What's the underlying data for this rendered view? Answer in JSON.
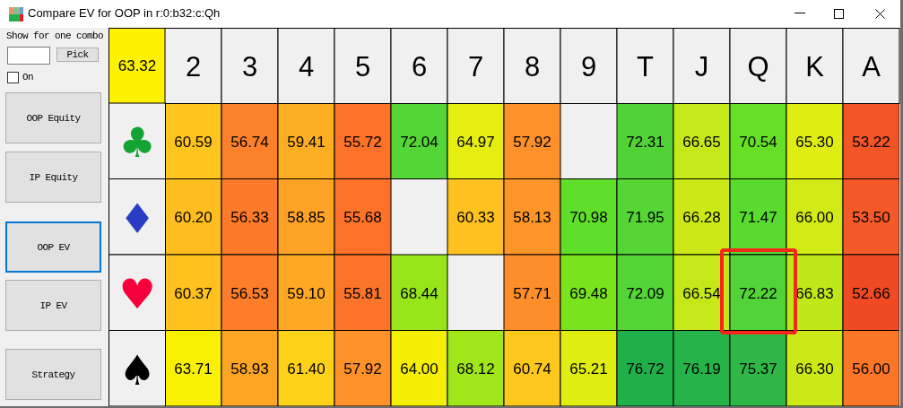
{
  "chart_data": {
    "type": "heatmap",
    "title": "Compare EV for OOP in r:0:b32:c:Qh",
    "categories": [
      "2",
      "3",
      "4",
      "5",
      "6",
      "7",
      "8",
      "9",
      "T",
      "J",
      "Q",
      "K",
      "A"
    ],
    "y_categories": [
      "♣",
      "♦",
      "♥",
      "♠"
    ],
    "cells": [
      [
        60.59,
        56.74,
        59.41,
        55.72,
        72.04,
        64.97,
        57.92,
        null,
        72.31,
        66.65,
        70.54,
        65.3,
        53.22
      ],
      [
        60.2,
        56.33,
        58.85,
        55.68,
        null,
        60.33,
        58.13,
        70.98,
        71.95,
        66.28,
        71.47,
        66.0,
        53.5
      ],
      [
        60.37,
        56.53,
        59.1,
        55.81,
        68.44,
        null,
        57.71,
        69.48,
        72.09,
        66.54,
        72.22,
        66.83,
        52.66
      ],
      [
        63.71,
        58.93,
        61.4,
        57.92,
        64.0,
        68.12,
        60.74,
        65.21,
        76.72,
        76.19,
        75.37,
        66.3,
        56.0
      ]
    ],
    "cell_labels": [
      [
        "60.59",
        "56.74",
        "59.41",
        "55.72",
        "72.04",
        "64.97",
        "57.92",
        null,
        "72.31",
        "66.65",
        "70.54",
        "65.30",
        "53.22"
      ],
      [
        "60.20",
        "56.33",
        "58.85",
        "55.68",
        null,
        "60.33",
        "58.13",
        "70.98",
        "71.95",
        "66.28",
        "71.47",
        "66.00",
        "53.50"
      ],
      [
        "60.37",
        "56.53",
        "59.10",
        "55.81",
        "68.44",
        null,
        "57.71",
        "69.48",
        "72.09",
        "66.54",
        "72.22",
        "66.83",
        "52.66"
      ],
      [
        "63.71",
        "58.93",
        "61.40",
        "57.92",
        "64.00",
        "68.12",
        "60.74",
        "65.21",
        "76.72",
        "76.19",
        "75.37",
        "66.30",
        "56.00"
      ]
    ],
    "data_labels": true,
    "annotations": [
      "63.32",
      "Show for one combo",
      "Pick",
      "On",
      "OOP Equity",
      "IP Equity",
      "OOP EV",
      "IP EV",
      "Strategy"
    ]
  }
}
